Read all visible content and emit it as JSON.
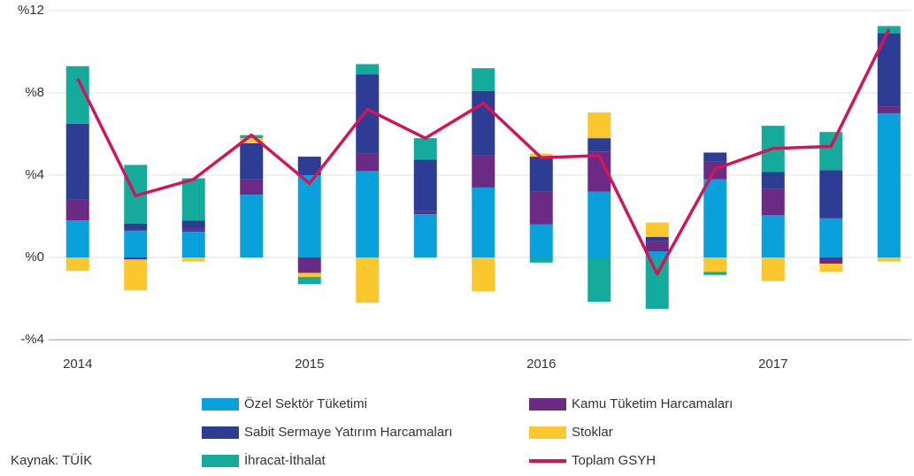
{
  "chart_data": {
    "type": "bar",
    "stacked": true,
    "categories": [
      "2014",
      null,
      null,
      null,
      "2015",
      null,
      null,
      null,
      "2016",
      null,
      null,
      null,
      "2017",
      null,
      null
    ],
    "series": [
      {
        "name": "Özel Sektör Tüketimi",
        "color": "#0aa0dc",
        "values": [
          1.8,
          1.3,
          1.25,
          3.05,
          4.0,
          4.2,
          2.1,
          3.4,
          1.6,
          3.2,
          0.3,
          3.8,
          2.05,
          1.9,
          7.0
        ]
      },
      {
        "name": "Kamu Tüketim Harcamaları",
        "color": "#6b2a83",
        "values": [
          1.0,
          -0.1,
          0.15,
          0.75,
          -0.75,
          0.85,
          0.15,
          1.55,
          1.6,
          1.95,
          0.5,
          0.85,
          1.3,
          -0.3,
          0.35
        ]
      },
      {
        "name": "Sabit Sermaye Yatırım Harcamaları",
        "color": "#2e3d94",
        "values": [
          3.7,
          0.35,
          0.4,
          1.75,
          0.9,
          3.85,
          2.5,
          3.15,
          1.7,
          0.65,
          0.2,
          0.45,
          0.8,
          2.35,
          3.55
        ]
      },
      {
        "name": "Stoklar",
        "color": "#fbc72f",
        "values": [
          -0.65,
          -1.5,
          -0.2,
          0.25,
          -0.2,
          -2.2,
          0,
          -1.65,
          0.15,
          1.25,
          0.7,
          -0.7,
          -1.15,
          -0.4,
          -0.2
        ]
      },
      {
        "name": "İhracat-İthalat",
        "color": "#14ab9c",
        "values": [
          2.8,
          2.85,
          2.05,
          0.15,
          -0.35,
          0.5,
          1.05,
          1.1,
          -0.25,
          -2.15,
          -2.5,
          -0.15,
          2.25,
          1.85,
          0.35
        ]
      },
      {
        "name": "Toplam GSYH",
        "type": "line",
        "color": "#d2145a",
        "values": [
          8.7,
          3.0,
          3.8,
          5.95,
          3.6,
          7.2,
          5.8,
          7.5,
          4.85,
          4.95,
          -0.8,
          4.3,
          5.3,
          5.4,
          11.1
        ]
      }
    ],
    "ylim": [
      -4,
      12
    ],
    "yticks": [
      {
        "value": -4,
        "label": "-%4"
      },
      {
        "value": 0,
        "label": "%0"
      },
      {
        "value": 4,
        "label": "%4"
      },
      {
        "value": 8,
        "label": "%8"
      },
      {
        "value": 12,
        "label": "%12"
      }
    ],
    "grid": true,
    "source": "Kaynak: TÜİK"
  }
}
